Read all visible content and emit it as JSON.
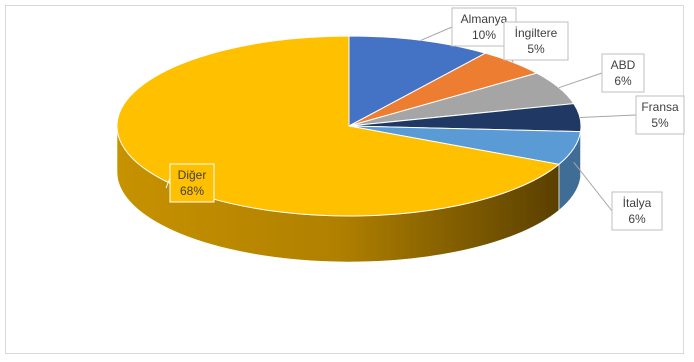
{
  "chart_data": {
    "type": "pie",
    "style": "3d",
    "title": "",
    "start_angle_deg": 0,
    "direction": "clockwise",
    "slices": [
      {
        "label": "Almanya",
        "percent_label": "10%",
        "value": 10,
        "color": "#4472c4"
      },
      {
        "label": "İngiltere",
        "percent_label": "5%",
        "value": 5,
        "color": "#ed7d31"
      },
      {
        "label": "ABD",
        "percent_label": "6%",
        "value": 6,
        "color": "#a5a5a5"
      },
      {
        "label": "Fransa",
        "percent_label": "5%",
        "value": 5,
        "color": "#1f3864"
      },
      {
        "label": "İtalya",
        "percent_label": "6%",
        "value": 6,
        "color": "#5b9bd5"
      },
      {
        "label": "Diğer",
        "percent_label": "68%",
        "value": 68,
        "color": "#ffc000"
      }
    ],
    "legend": "none",
    "data_labels": "callouts"
  }
}
